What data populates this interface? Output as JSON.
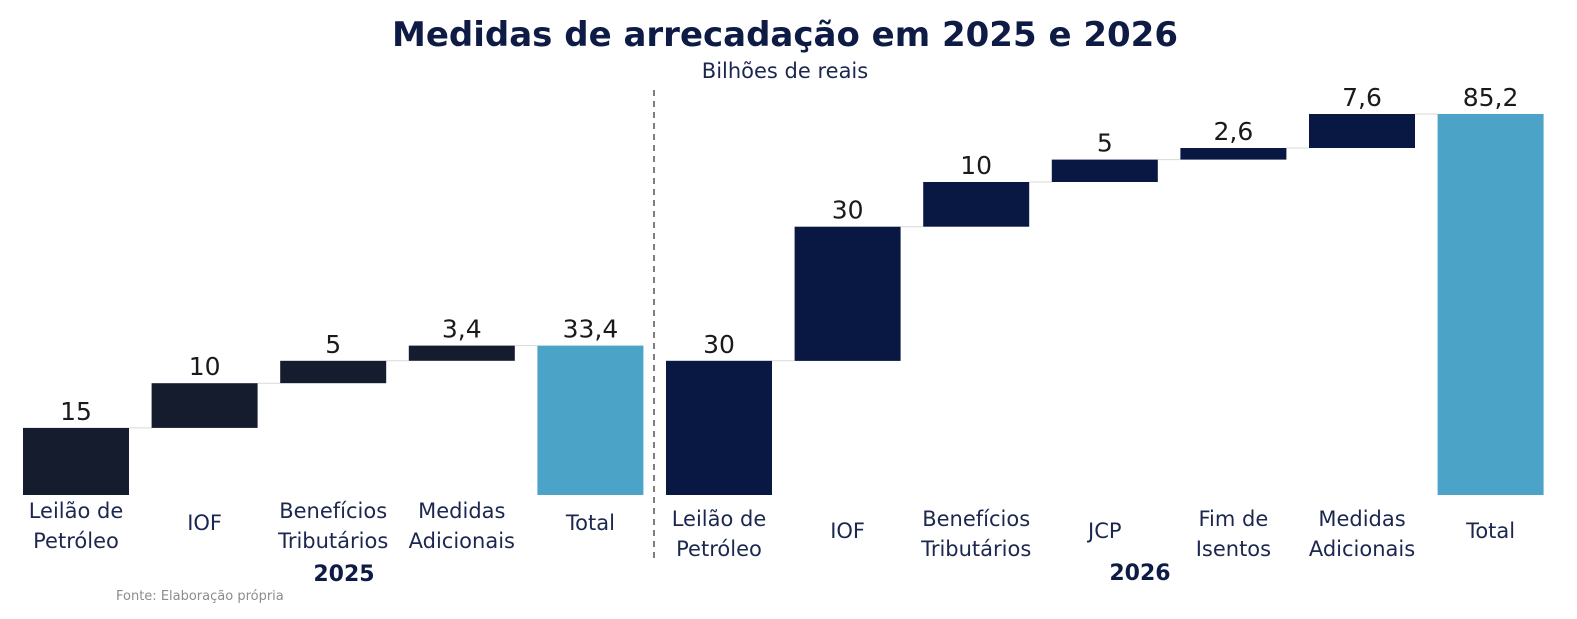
{
  "chart_data": {
    "type": "bar",
    "subtype": "waterfall",
    "title": "Medidas de arrecadação em 2025 e 2026",
    "subtitle": "Bilhões de reais",
    "source": "Fonte: Elaboração própria",
    "colors": {
      "step_2025": "#141c2e",
      "step_2026": "#091843",
      "total": "#4ca3c8",
      "title": "#0d1b45",
      "text": "#1c2750",
      "divider": "#555555",
      "connector": "#d9d9d9"
    },
    "groups": [
      {
        "name": "2025",
        "bars": [
          {
            "label_lines": [
              "Leilão de",
              "Petróleo"
            ],
            "value": 15,
            "value_label": "15",
            "kind": "step"
          },
          {
            "label_lines": [
              "IOF"
            ],
            "value": 10,
            "value_label": "10",
            "kind": "step"
          },
          {
            "label_lines": [
              "Benefícios",
              "Tributários"
            ],
            "value": 5,
            "value_label": "5",
            "kind": "step"
          },
          {
            "label_lines": [
              "Medidas",
              "Adicionais"
            ],
            "value": 3.4,
            "value_label": "3,4",
            "kind": "step"
          },
          {
            "label_lines": [
              "Total"
            ],
            "value": 33.4,
            "value_label": "33,4",
            "kind": "total"
          }
        ]
      },
      {
        "name": "2026",
        "bars": [
          {
            "label_lines": [
              "Leilão de",
              "Petróleo"
            ],
            "value": 30,
            "value_label": "30",
            "kind": "step"
          },
          {
            "label_lines": [
              "IOF"
            ],
            "value": 30,
            "value_label": "30",
            "kind": "step"
          },
          {
            "label_lines": [
              "Benefícios",
              "Tributários"
            ],
            "value": 10,
            "value_label": "10",
            "kind": "step"
          },
          {
            "label_lines": [
              "JCP"
            ],
            "value": 5,
            "value_label": "5",
            "kind": "step"
          },
          {
            "label_lines": [
              "Fim de",
              "Isentos"
            ],
            "value": 2.6,
            "value_label": "2,6",
            "kind": "step"
          },
          {
            "label_lines": [
              "Medidas",
              "Adicionais"
            ],
            "value": 7.6,
            "value_label": "7,6",
            "kind": "step"
          },
          {
            "label_lines": [
              "Total"
            ],
            "value": 85.2,
            "value_label": "85,2",
            "kind": "total"
          }
        ]
      }
    ],
    "ylim": [
      0,
      85.2
    ],
    "grid": false,
    "legend": "none"
  }
}
